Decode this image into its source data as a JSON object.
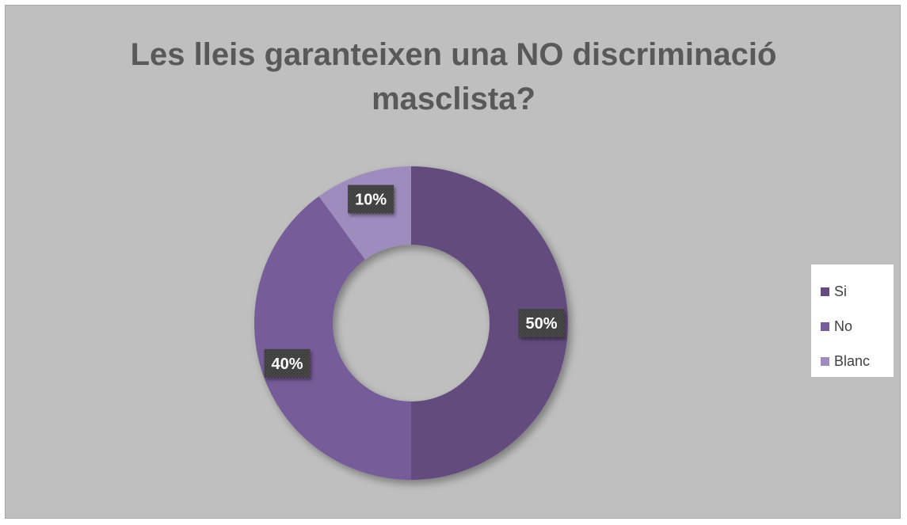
{
  "chart_data": {
    "type": "pie",
    "donut": true,
    "title_lines": [
      "Les lleis garanteixen una NO discriminació",
      "masclista?"
    ],
    "categories": [
      "Si",
      "No",
      "Blanc"
    ],
    "values": [
      50,
      40,
      10
    ],
    "data_labels": [
      "50%",
      "40%",
      "10%"
    ],
    "colors": [
      "#634c7e",
      "#765c98",
      "#9f8cbe"
    ],
    "legend_position": "right"
  }
}
